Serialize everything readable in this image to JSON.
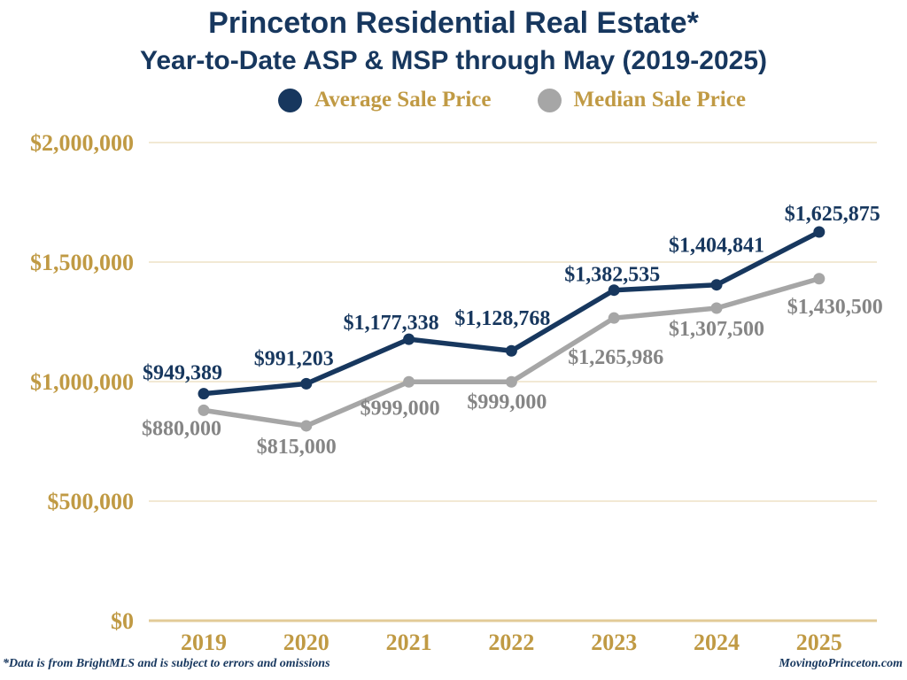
{
  "header": {
    "title": "Princeton Residential Real Estate*",
    "subtitle": "Year-to-Date ASP & MSP through May (2019-2025)"
  },
  "legend": {
    "items": [
      {
        "label": "Average Sale Price",
        "color": "#17375E"
      },
      {
        "label": "Median Sale Price",
        "color": "#A6A6A6"
      }
    ]
  },
  "footer": {
    "left": "*Data is from BrightMLS and is subject to errors and omissions",
    "right": "MovingtoPrinceton.com"
  },
  "chart_data": {
    "type": "line",
    "title": "Princeton Residential Real Estate*",
    "subtitle": "Year-to-Date ASP & MSP through May (2019-2025)",
    "categories": [
      "2019",
      "2020",
      "2021",
      "2022",
      "2023",
      "2024",
      "2025"
    ],
    "series": [
      {
        "id": "average-sale-price",
        "name": "Average Sale Price",
        "color": "#17375E",
        "label_color": "#17375E",
        "values": [
          949389,
          991203,
          1177338,
          1128768,
          1382535,
          1404841,
          1625875
        ],
        "labels": [
          "$949,389",
          "$991,203",
          "$1,177,338",
          "$1,128,768",
          "$1,382,535",
          "$1,404,841",
          "$1,625,875"
        ],
        "label_offsets": [
          [
            -24,
            -16
          ],
          [
            -14,
            -21
          ],
          [
            -20,
            -11
          ],
          [
            -10,
            -29
          ],
          [
            -2,
            -10
          ],
          [
            0,
            -37
          ],
          [
            15,
            -13
          ]
        ]
      },
      {
        "id": "median-sale-price",
        "name": "Median Sale Price",
        "color": "#A6A6A6",
        "label_color": "#858585",
        "values": [
          880000,
          815000,
          999000,
          999000,
          1265986,
          1307500,
          1430500
        ],
        "labels": [
          "$880,000",
          "$815,000",
          "$999,000",
          "$999,000",
          "$1,265,986",
          "$1,307,500",
          "$1,430,500"
        ],
        "label_offsets": [
          [
            -25,
            28
          ],
          [
            -11,
            31
          ],
          [
            -10,
            37
          ],
          [
            -5,
            30
          ],
          [
            2,
            52
          ],
          [
            0,
            31
          ],
          [
            18,
            39
          ]
        ]
      }
    ],
    "y_ticks": [
      {
        "value": 2000000,
        "label": "$2,000,000"
      },
      {
        "value": 1500000,
        "label": "$1,500,000"
      },
      {
        "value": 1000000,
        "label": "$1,000,000"
      },
      {
        "value": 500000,
        "label": "$500,000"
      },
      {
        "value": 0,
        "label": "$0"
      }
    ],
    "ylim": [
      0,
      2000000
    ],
    "xlabel": "",
    "ylabel": "",
    "grid": true,
    "legend_position": "top",
    "colors": {
      "gold_text": "#C09A44",
      "gridline": "#F2E9D4",
      "axis_line": "#E2CB97"
    }
  }
}
